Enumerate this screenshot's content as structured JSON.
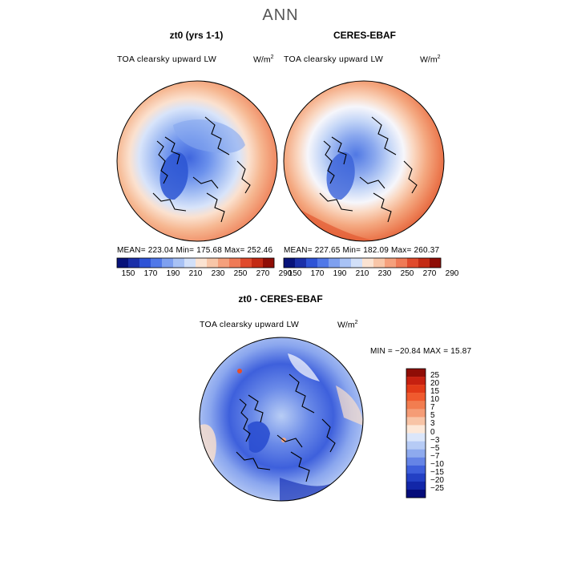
{
  "main_title": "ANN",
  "panels": [
    {
      "title": "zt0 (yrs 1-1)",
      "variable": "TOA clearsky upward LW",
      "units": "W/m",
      "units_sup": "2",
      "stats": "MEAN= 223.04   Min= 175.68   Max= 252.46"
    },
    {
      "title": "CERES-EBAF",
      "variable": "TOA clearsky upward LW",
      "units": "W/m",
      "units_sup": "2",
      "stats": "MEAN= 227.65   Min= 182.09   Max= 260.37"
    }
  ],
  "top_colorbar": {
    "ticks": [
      "150",
      "170",
      "190",
      "210",
      "230",
      "250",
      "270",
      "290"
    ],
    "colors": [
      "#08137a",
      "#1a2fa8",
      "#2e53d6",
      "#5078e8",
      "#7ea0f0",
      "#a8c2f5",
      "#d2e0f9",
      "#fbe3d2",
      "#f8c6a8",
      "#f5a07c",
      "#ef7a56",
      "#e04a2c",
      "#c32a14",
      "#8f0d06"
    ]
  },
  "diff_panel": {
    "title": "zt0 - CERES-EBAF",
    "variable": "TOA clearsky upward LW",
    "units": "W/m",
    "units_sup": "2",
    "stats": "MIN = −20.84  MAX =  15.87"
  },
  "diff_colorbar": {
    "ticks": [
      "25",
      "20",
      "15",
      "10",
      "7",
      "5",
      "3",
      "0",
      "−3",
      "−5",
      "−7",
      "−10",
      "−15",
      "−20",
      "−25"
    ],
    "colors": [
      "#8f0d06",
      "#c62010",
      "#e23a18",
      "#f05a2e",
      "#f27d50",
      "#f59c76",
      "#f8c4a6",
      "#fde8d8",
      "#dbe6fa",
      "#b6cbf5",
      "#8eaaee",
      "#6584e6",
      "#3e5fdb",
      "#2340c4",
      "#1226a8",
      "#050c7a"
    ]
  }
}
